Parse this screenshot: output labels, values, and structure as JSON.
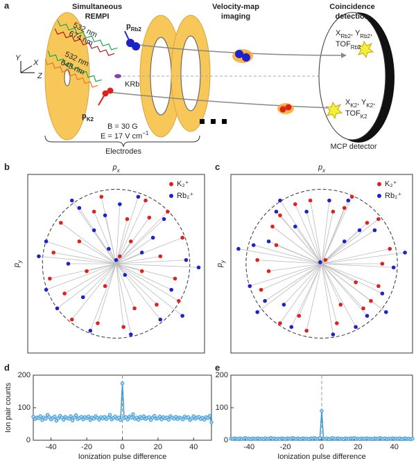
{
  "diagram": {
    "panel_label": "a",
    "titles": [
      [
        "Simultaneous",
        "REMPI"
      ],
      [
        "Velocity-map",
        "imaging"
      ],
      [
        "Coincidence",
        "detection"
      ]
    ],
    "axes": [
      "Y",
      "X",
      "Z"
    ],
    "lasers": [
      "532 nm",
      "674 nm",
      "532 nm",
      "648 nm"
    ],
    "p_rb2": {
      "main": "p",
      "sub": "Rb2"
    },
    "krb": "KRb",
    "p_k2": {
      "main": "p",
      "sub": "K2"
    },
    "b_field": "B = 30 G",
    "e_field": {
      "main": "E = 17 V cm",
      "sup": "−1"
    },
    "electrodes": "Electrodes",
    "mcp": "MCP detector",
    "rb_readout": [
      [
        {
          "main": "X",
          "sub": "Rb2"
        },
        {
          "main": ", Y",
          "sub": "Rb2"
        },
        ","
      ],
      [
        {
          "main": "TOF",
          "sub": "Rb2"
        }
      ]
    ],
    "k_readout": [
      [
        {
          "main": "X",
          "sub": "K2"
        },
        {
          "main": ", Y",
          "sub": "K2"
        },
        ","
      ],
      [
        {
          "main": "TOF",
          "sub": "K2"
        }
      ]
    ]
  },
  "chart_data": [
    {
      "type": "scatter",
      "panel_label": "b",
      "x_label": {
        "main": "p",
        "sub": "x"
      },
      "y_label": {
        "main": "p",
        "sub": "y"
      },
      "xlim": [
        -1.2,
        1.2
      ],
      "ylim": [
        -1.2,
        1.2
      ],
      "series": [
        {
          "name": "K₂⁺",
          "color": "#e0201b",
          "x": [
            0.45,
            -0.3,
            0.8,
            -0.7,
            0.1,
            0.55,
            -0.5,
            0.9,
            -0.85,
            0.2,
            -0.15,
            0.35,
            -0.6,
            0.7,
            -0.2,
            0.05,
            -0.4,
            0.6,
            0.25,
            -0.9,
            0.4,
            -0.75,
            0.15,
            -0.25,
            0.85
          ],
          "values": [
            0.62,
            0.7,
            -0.2,
            -0.4,
            -0.85,
            -0.55,
            0.3,
            0.35,
            0.15,
            0.3,
            -0.3,
            -0.1,
            -0.75,
            0.7,
            0.9,
            0.1,
            -0.1,
            0.1,
            -0.6,
            -0.2,
            0.85,
            0.55,
            0.6,
            -0.8,
            -0.5
          ]
        },
        {
          "name": "Rb₂⁺",
          "color": "#1d22c9",
          "x": [
            -0.5,
            0.3,
            -0.95,
            0.95,
            0.6,
            -0.35,
            0.0,
            -0.1,
            0.12,
            -0.65,
            0.5,
            -0.3,
            0.75,
            -0.8,
            0.2,
            1.12,
            -1.05,
            0.65,
            -0.45,
            0.35,
            -0.15,
            0.9,
            -0.6,
            0.05,
            -0.95
          ],
          "values": [
            0.75,
            0.9,
            0.3,
            0.05,
            -0.75,
            -0.9,
            0.05,
            0.2,
            -0.15,
            0.0,
            0.35,
            0.45,
            -0.35,
            -0.6,
            -0.95,
            -0.05,
            0.1,
            0.6,
            -0.45,
            0.15,
            0.65,
            -0.7,
            0.85,
            0.8,
            -0.35
          ]
        }
      ]
    },
    {
      "type": "scatter",
      "panel_label": "c",
      "x_label": {
        "main": "p",
        "sub": "x"
      },
      "y_label": {
        "main": "p",
        "sub": "y"
      },
      "xlim": [
        -1.2,
        1.2
      ],
      "ylim": [
        -1.2,
        1.2
      ],
      "series": [
        {
          "name": "K₂⁺",
          "color": "#e0201b",
          "x": [
            0.6,
            -0.55,
            0.75,
            -0.8,
            0.2,
            0.55,
            -0.6,
            0.9,
            -0.85,
            0.3,
            -0.3,
            0.45,
            -0.55,
            0.75,
            -0.15,
            0.05,
            -0.7,
            0.8,
            0.25,
            -0.65,
            0.4,
            -0.35,
            0.15,
            -0.2,
            0.65
          ],
          "values": [
            0.55,
            0.65,
            -0.3,
            -0.35,
            -0.8,
            -0.6,
            0.25,
            0.2,
            0.05,
            0.75,
            -0.7,
            -0.25,
            -0.8,
            0.6,
            0.85,
            0.05,
            -0.1,
            0.0,
            -0.55,
            0.5,
            0.9,
            0.8,
            0.7,
            -0.9,
            -0.5
          ]
        },
        {
          "name": "Rb₂⁺",
          "color": "#1d22c9",
          "x": [
            -0.6,
            0.35,
            -0.9,
            0.95,
            0.6,
            -0.4,
            -0.02,
            -0.75,
            0.5,
            -0.35,
            0.8,
            -0.85,
            0.15,
            1.1,
            -1.1,
            0.7,
            -0.5,
            0.3,
            -0.2,
            0.85,
            -0.55,
            0.1,
            -0.95,
            0.45,
            -0.7
          ],
          "values": [
            0.7,
            0.85,
            0.25,
            -0.05,
            -0.7,
            -0.85,
            0.02,
            -0.5,
            0.45,
            0.5,
            -0.4,
            -0.65,
            -0.95,
            0.15,
            0.2,
            0.45,
            -0.55,
            0.3,
            0.7,
            -0.65,
            0.85,
            0.85,
            -0.3,
            -0.85,
            0.3
          ]
        }
      ]
    },
    {
      "type": "line",
      "panel_label": "d",
      "y_label": "Ion pair counts",
      "x_label": "Ionization pulse difference",
      "color": "#3a9ad9",
      "xlim": [
        -50,
        50
      ],
      "ylim": [
        0,
        200
      ],
      "xticks": [
        -40,
        -20,
        0,
        20,
        40
      ],
      "yticks": [
        0,
        100,
        200
      ],
      "x": [
        -50,
        -49,
        -48,
        -47,
        -46,
        -45,
        -44,
        -43,
        -42,
        -41,
        -40,
        -39,
        -38,
        -37,
        -36,
        -35,
        -34,
        -33,
        -32,
        -31,
        -30,
        -29,
        -28,
        -27,
        -26,
        -25,
        -24,
        -23,
        -22,
        -21,
        -20,
        -19,
        -18,
        -17,
        -16,
        -15,
        -14,
        -13,
        -12,
        -11,
        -10,
        -9,
        -8,
        -7,
        -6,
        -5,
        -4,
        -3,
        -2,
        -1,
        0,
        1,
        2,
        3,
        4,
        5,
        6,
        7,
        8,
        9,
        10,
        11,
        12,
        13,
        14,
        15,
        16,
        17,
        18,
        19,
        20,
        21,
        22,
        23,
        24,
        25,
        26,
        27,
        28,
        29,
        30,
        31,
        32,
        33,
        34,
        35,
        36,
        37,
        38,
        39,
        40,
        41,
        42,
        43,
        44,
        45,
        46,
        47,
        48,
        49,
        50
      ],
      "values": [
        72,
        65,
        70,
        68,
        74,
        62,
        70,
        66,
        78,
        71,
        64,
        69,
        73,
        60,
        67,
        75,
        70,
        63,
        72,
        68,
        66,
        74,
        61,
        70,
        77,
        65,
        69,
        72,
        64,
        71,
        68,
        73,
        62,
        70,
        66,
        74,
        69,
        63,
        71,
        67,
        72,
        65,
        70,
        78,
        64,
        69,
        73,
        66,
        70,
        62,
        175,
        68,
        71,
        64,
        73,
        69,
        80,
        66,
        70,
        63,
        72,
        67,
        74,
        65,
        69,
        71,
        62,
        70,
        75,
        66,
        68,
        73,
        64,
        71,
        67,
        70,
        63,
        74,
        69,
        66,
        72,
        65,
        70,
        68,
        64,
        73,
        69,
        71,
        62,
        67,
        74,
        66,
        70,
        72,
        65,
        69,
        63,
        71,
        68,
        75,
        55
      ]
    },
    {
      "type": "line",
      "panel_label": "e",
      "x_label": "Ionization pulse difference",
      "color": "#3a9ad9",
      "xlim": [
        -50,
        50
      ],
      "ylim": [
        0,
        200
      ],
      "xticks": [
        -40,
        -20,
        0,
        20,
        40
      ],
      "yticks": [
        0,
        100,
        200
      ],
      "x": [
        -50,
        -49,
        -48,
        -47,
        -46,
        -45,
        -44,
        -43,
        -42,
        -41,
        -40,
        -39,
        -38,
        -37,
        -36,
        -35,
        -34,
        -33,
        -32,
        -31,
        -30,
        -29,
        -28,
        -27,
        -26,
        -25,
        -24,
        -23,
        -22,
        -21,
        -20,
        -19,
        -18,
        -17,
        -16,
        -15,
        -14,
        -13,
        -12,
        -11,
        -10,
        -9,
        -8,
        -7,
        -6,
        -5,
        -4,
        -3,
        -2,
        -1,
        0,
        1,
        2,
        3,
        4,
        5,
        6,
        7,
        8,
        9,
        10,
        11,
        12,
        13,
        14,
        15,
        16,
        17,
        18,
        19,
        20,
        21,
        22,
        23,
        24,
        25,
        26,
        27,
        28,
        29,
        30,
        31,
        32,
        33,
        34,
        35,
        36,
        37,
        38,
        39,
        40,
        41,
        42,
        43,
        44,
        45,
        46,
        47,
        48,
        49,
        50
      ],
      "values": [
        5,
        4,
        6,
        5,
        3,
        6,
        4,
        5,
        7,
        4,
        5,
        3,
        6,
        4,
        5,
        6,
        4,
        5,
        3,
        6,
        4,
        5,
        7,
        4,
        6,
        3,
        5,
        4,
        6,
        5,
        3,
        6,
        5,
        4,
        7,
        5,
        4,
        6,
        3,
        5,
        6,
        4,
        5,
        3,
        6,
        5,
        7,
        4,
        5,
        6,
        90,
        5,
        4,
        6,
        3,
        5,
        7,
        4,
        5,
        6,
        4,
        5,
        3,
        6,
        5,
        4,
        6,
        5,
        7,
        4,
        5,
        3,
        6,
        4,
        5,
        6,
        4,
        5,
        3,
        6,
        5,
        4,
        7,
        5,
        4,
        6,
        3,
        5,
        4,
        6,
        5,
        5,
        4,
        6,
        3,
        5,
        6,
        4,
        5,
        3,
        5
      ]
    }
  ]
}
